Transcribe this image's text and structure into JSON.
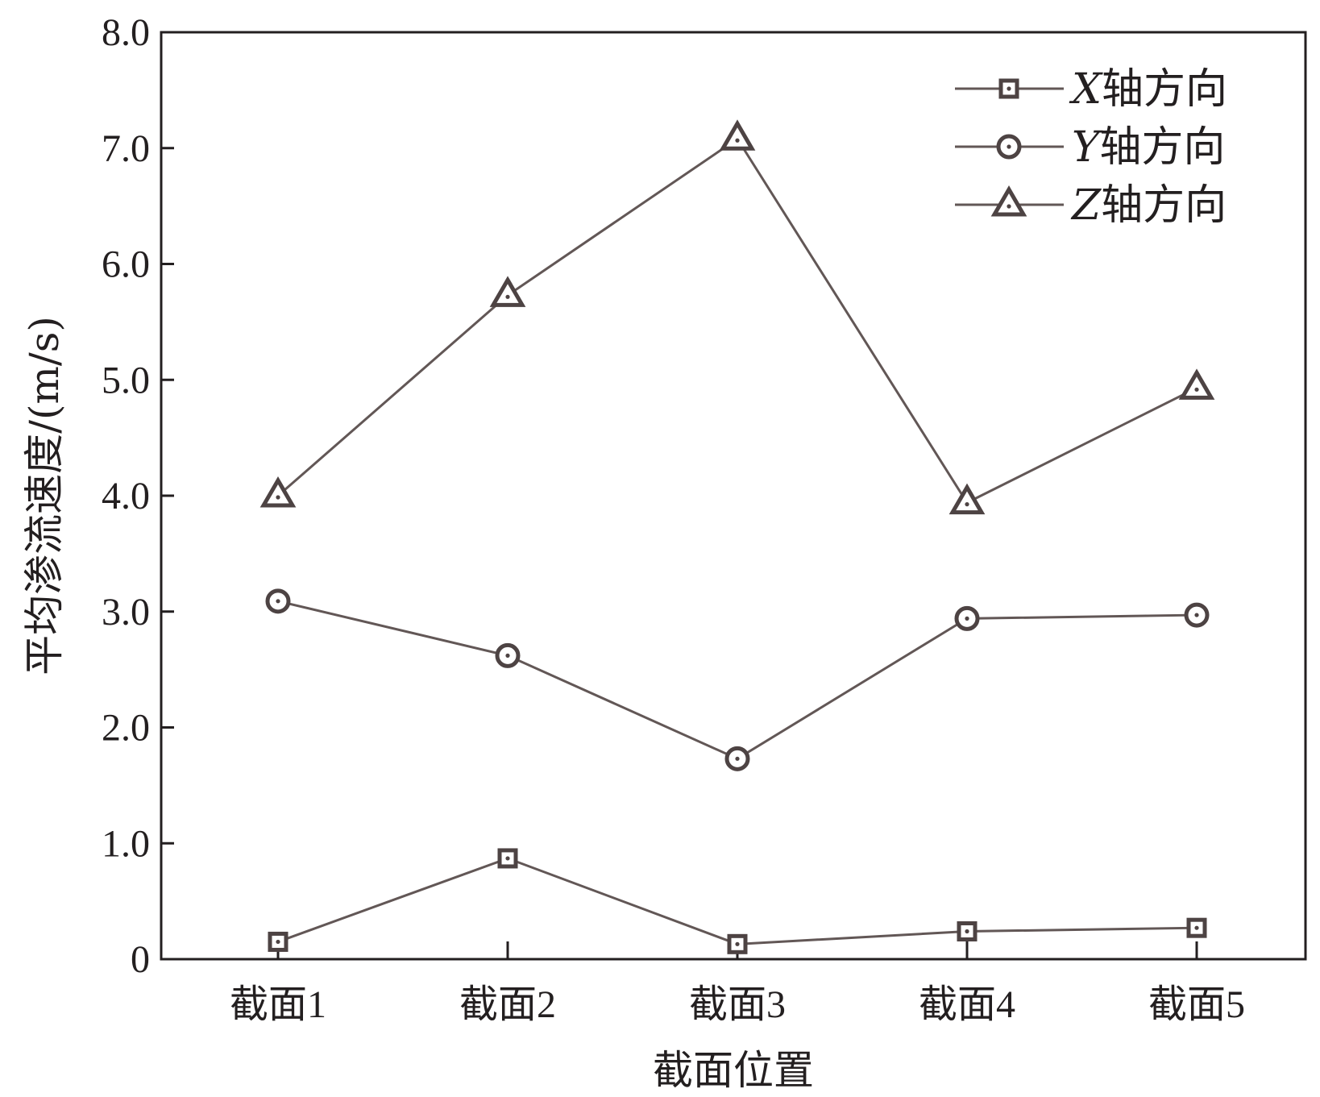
{
  "chart_data": {
    "type": "line",
    "xlabel": "截面位置",
    "ylabel": "平均渗流速度/(m/s)",
    "categories": [
      "截面1",
      "截面2",
      "截面3",
      "截面4",
      "截面5"
    ],
    "ylim": [
      0,
      8
    ],
    "yticks": [
      "0",
      "1.0",
      "2.0",
      "3.0",
      "4.0",
      "5.0",
      "6.0",
      "7.0",
      "8.0"
    ],
    "grid": false,
    "legend_position": "top-right",
    "series": [
      {
        "name_var": "X",
        "name_suffix": "轴方向",
        "marker": "square",
        "values": [
          0.15,
          0.87,
          0.13,
          0.24,
          0.27
        ]
      },
      {
        "name_var": "Y",
        "name_suffix": "轴方向",
        "marker": "circle",
        "values": [
          3.09,
          2.62,
          1.73,
          2.94,
          2.97
        ]
      },
      {
        "name_var": "Z",
        "name_suffix": "轴方向",
        "marker": "triangle",
        "values": [
          4.0,
          5.73,
          7.08,
          3.94,
          4.93
        ]
      }
    ],
    "colors": {
      "line": "#625756",
      "marker_stroke": "#4d4343",
      "axis": "#231f20"
    }
  }
}
